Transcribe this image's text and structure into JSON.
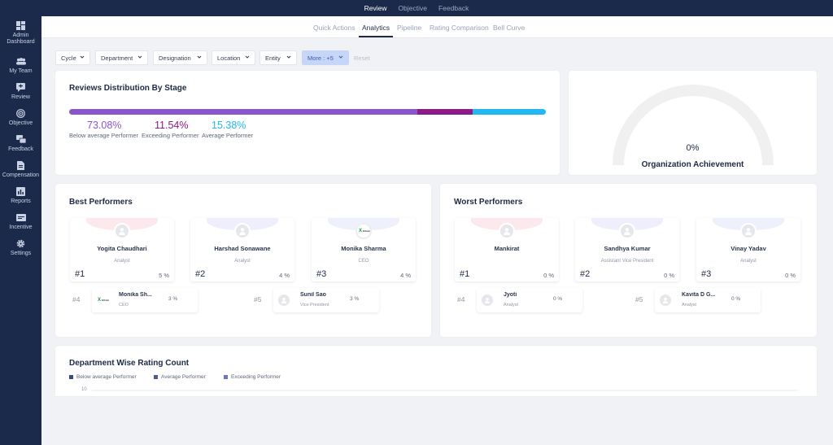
{
  "topnav": {
    "tabs": [
      {
        "label": "Review",
        "active": true
      },
      {
        "label": "Objective",
        "active": false
      },
      {
        "label": "Feedback",
        "active": false
      }
    ]
  },
  "sidebar": {
    "items": [
      {
        "label": "Admin Dashboard",
        "icon": "dashboard-icon"
      },
      {
        "label": "My Team",
        "icon": "team-icon"
      },
      {
        "label": "Review",
        "icon": "review-icon"
      },
      {
        "label": "Objective",
        "icon": "target-icon"
      },
      {
        "label": "Feedback",
        "icon": "feedback-icon"
      },
      {
        "label": "Compensation",
        "icon": "document-icon"
      },
      {
        "label": "Reports",
        "icon": "reports-icon"
      },
      {
        "label": "Incentive",
        "icon": "incentive-icon"
      },
      {
        "label": "Settings",
        "icon": "gear-icon"
      }
    ]
  },
  "subtabs": [
    {
      "label": "Quick Actions",
      "active": false
    },
    {
      "label": "Analytics",
      "active": true
    },
    {
      "label": "Pipeline",
      "active": false
    },
    {
      "label": "Rating Comparison",
      "active": false
    },
    {
      "label": "Bell Curve",
      "active": false
    }
  ],
  "filters": {
    "items": [
      "Cycle",
      "Department",
      "Designation",
      "Location",
      "Entity"
    ],
    "more": "More : +5",
    "reset": "Reset"
  },
  "stage_distribution": {
    "title": "Reviews Distribution By Stage",
    "segments": [
      {
        "pct": "73.08%",
        "value": 73.08,
        "label": "Below average Performer",
        "color": "#8a56c9"
      },
      {
        "pct": "11.54%",
        "value": 11.54,
        "label": "Exceeding Performer",
        "color": "#8c1a87"
      },
      {
        "pct": "15.38%",
        "value": 15.38,
        "label": "Average Performer",
        "color": "#21b9ef"
      }
    ]
  },
  "org_achievement": {
    "value": "0%",
    "label": "Organization Achievement"
  },
  "best_performers": {
    "title": "Best Performers",
    "top": [
      {
        "rank": "#1",
        "name": "Yogita Chaudhari",
        "role": "Analyst",
        "score": "5 %",
        "avatar": "user-icon"
      },
      {
        "rank": "#2",
        "name": "Harshad Sonawane",
        "role": "Analyst",
        "score": "4 %",
        "avatar": "user-icon"
      },
      {
        "rank": "#3",
        "name": "Monika Sharma",
        "role": "CEO",
        "score": "4 %",
        "avatar": "logo"
      }
    ],
    "rest": [
      {
        "rank": "#4",
        "name": "Monika Sh...",
        "role": "CEO",
        "score": "3 %",
        "avatar": "logo"
      },
      {
        "rank": "#5",
        "name": "Sunil Sao",
        "role": "Vice President",
        "score": "3 %",
        "avatar": "user-icon"
      }
    ]
  },
  "worst_performers": {
    "title": "Worst Performers",
    "top": [
      {
        "rank": "#1",
        "name": "Mankirat",
        "role": "",
        "score": "0 %",
        "avatar": "user-icon"
      },
      {
        "rank": "#2",
        "name": "Sandhya Kumar",
        "role": "Assistant Vice President",
        "score": "0 %",
        "avatar": "user-icon"
      },
      {
        "rank": "#3",
        "name": "Vinay Yadav",
        "role": "Analyst",
        "score": "0 %",
        "avatar": "user-icon"
      }
    ],
    "rest": [
      {
        "rank": "#4",
        "name": "Jyoti",
        "role": "Analyst",
        "score": "0 %",
        "avatar": "user-icon"
      },
      {
        "rank": "#5",
        "name": "Kavita D G...",
        "role": "Analyst",
        "score": "0 %",
        "avatar": "user-icon"
      }
    ]
  },
  "logo_text": "Ethnic",
  "department_chart": {
    "title": "Department Wise Rating Count",
    "legend": [
      {
        "label": "Below average Performer",
        "color": "#3a4a7c"
      },
      {
        "label": "Average Performer",
        "color": "#4b5aa0"
      },
      {
        "label": "Exceeding Performer",
        "color": "#6b74c8"
      }
    ],
    "first_tick": "10"
  }
}
